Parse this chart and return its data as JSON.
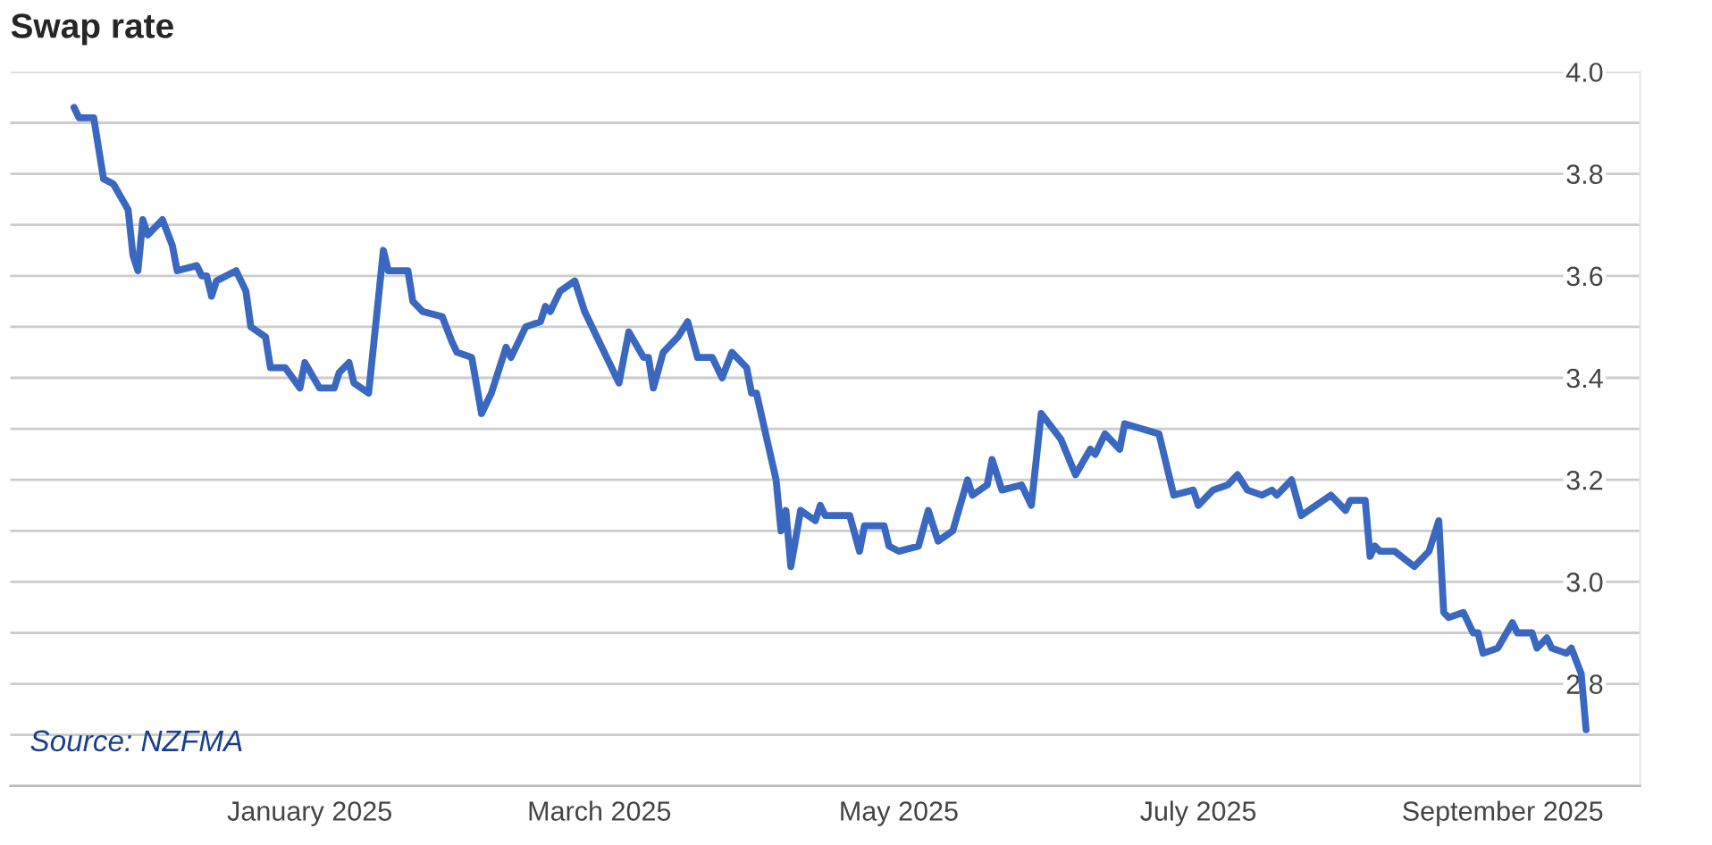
{
  "chart_data": {
    "type": "line",
    "title": "Swap rate",
    "annotations": [
      "Source: NZFMA"
    ],
    "x": [
      "2024-11-14",
      "2024-11-15",
      "2024-11-18",
      "2024-11-20",
      "2024-11-22",
      "2024-11-25",
      "2024-11-26",
      "2024-11-27",
      "2024-11-28",
      "2024-11-29",
      "2024-12-02",
      "2024-12-04",
      "2024-12-05",
      "2024-12-09",
      "2024-12-10",
      "2024-12-11",
      "2024-12-12",
      "2024-12-13",
      "2024-12-17",
      "2024-12-19",
      "2024-12-20",
      "2024-12-23",
      "2024-12-24",
      "2024-12-27",
      "2024-12-30",
      "2024-12-31",
      "2025-01-03",
      "2025-01-06",
      "2025-01-07",
      "2025-01-09",
      "2025-01-10",
      "2025-01-13",
      "2025-01-16",
      "2025-01-17",
      "2025-01-21",
      "2025-01-22",
      "2025-01-24",
      "2025-01-28",
      "2025-01-30",
      "2025-01-31",
      "2025-02-03",
      "2025-02-05",
      "2025-02-07",
      "2025-02-10",
      "2025-02-11",
      "2025-02-14",
      "2025-02-17",
      "2025-02-18",
      "2025-02-19",
      "2025-02-21",
      "2025-02-24",
      "2025-02-26",
      "2025-03-03",
      "2025-03-05",
      "2025-03-07",
      "2025-03-10",
      "2025-03-11",
      "2025-03-12",
      "2025-03-14",
      "2025-03-17",
      "2025-03-19",
      "2025-03-21",
      "2025-03-24",
      "2025-03-26",
      "2025-03-28",
      "2025-03-31",
      "2025-04-01",
      "2025-04-02",
      "2025-04-06",
      "2025-04-07",
      "2025-04-08",
      "2025-04-09",
      "2025-04-11",
      "2025-04-14",
      "2025-04-15",
      "2025-04-16",
      "2025-04-21",
      "2025-04-23",
      "2025-04-24",
      "2025-04-28",
      "2025-04-29",
      "2025-05-01",
      "2025-05-05",
      "2025-05-07",
      "2025-05-09",
      "2025-05-12",
      "2025-05-15",
      "2025-05-16",
      "2025-05-19",
      "2025-05-20",
      "2025-05-22",
      "2025-05-26",
      "2025-05-28",
      "2025-05-30",
      "2025-06-03",
      "2025-06-06",
      "2025-06-09",
      "2025-06-10",
      "2025-06-12",
      "2025-06-15",
      "2025-06-16",
      "2025-06-23",
      "2025-06-26",
      "2025-06-30",
      "2025-07-01",
      "2025-07-04",
      "2025-07-07",
      "2025-07-09",
      "2025-07-11",
      "2025-07-14",
      "2025-07-16",
      "2025-07-17",
      "2025-07-20",
      "2025-07-22",
      "2025-07-28",
      "2025-07-29",
      "2025-07-31",
      "2025-08-01",
      "2025-08-04",
      "2025-08-05",
      "2025-08-06",
      "2025-08-07",
      "2025-08-10",
      "2025-08-14",
      "2025-08-17",
      "2025-08-19",
      "2025-08-20",
      "2025-08-21",
      "2025-08-24",
      "2025-08-26",
      "2025-08-27",
      "2025-08-28",
      "2025-08-31",
      "2025-09-03",
      "2025-09-04",
      "2025-09-07",
      "2025-09-08",
      "2025-09-10",
      "2025-09-11",
      "2025-09-14",
      "2025-09-15",
      "2025-09-17",
      "2025-09-18"
    ],
    "series": [
      {
        "color": "#3a68c0",
        "values": [
          3.93,
          3.91,
          3.91,
          3.79,
          3.78,
          3.73,
          3.64,
          3.61,
          3.71,
          3.68,
          3.71,
          3.66,
          3.61,
          3.62,
          3.6,
          3.6,
          3.56,
          3.59,
          3.61,
          3.57,
          3.5,
          3.48,
          3.42,
          3.42,
          3.38,
          3.43,
          3.38,
          3.38,
          3.41,
          3.43,
          3.39,
          3.37,
          3.65,
          3.61,
          3.61,
          3.55,
          3.53,
          3.52,
          3.47,
          3.45,
          3.44,
          3.33,
          3.37,
          3.46,
          3.44,
          3.5,
          3.51,
          3.54,
          3.53,
          3.57,
          3.59,
          3.53,
          3.43,
          3.39,
          3.49,
          3.44,
          3.44,
          3.38,
          3.45,
          3.48,
          3.51,
          3.44,
          3.44,
          3.4,
          3.45,
          3.42,
          3.37,
          3.37,
          3.2,
          3.1,
          3.14,
          3.03,
          3.14,
          3.12,
          3.15,
          3.13,
          3.13,
          3.06,
          3.11,
          3.11,
          3.07,
          3.06,
          3.07,
          3.14,
          3.08,
          3.1,
          3.2,
          3.17,
          3.19,
          3.24,
          3.18,
          3.19,
          3.15,
          3.33,
          3.28,
          3.21,
          3.26,
          3.25,
          3.29,
          3.26,
          3.31,
          3.29,
          3.17,
          3.18,
          3.15,
          3.18,
          3.19,
          3.21,
          3.18,
          3.17,
          3.18,
          3.17,
          3.2,
          3.13,
          3.17,
          3.16,
          3.14,
          3.16,
          3.16,
          3.05,
          3.07,
          3.06,
          3.06,
          3.03,
          3.06,
          3.12,
          2.94,
          2.93,
          2.94,
          2.9,
          2.9,
          2.86,
          2.87,
          2.92,
          2.9,
          2.9,
          2.87,
          2.89,
          2.87,
          2.86,
          2.87,
          2.82,
          2.71
        ]
      }
    ],
    "xlim": [
      "2024-11-01",
      "2025-09-29"
    ],
    "xticks": [
      {
        "value": "2025-01-01",
        "label": "January 2025"
      },
      {
        "value": "2025-03-01",
        "label": "March 2025"
      },
      {
        "value": "2025-05-01",
        "label": "May 2025"
      },
      {
        "value": "2025-07-01",
        "label": "July 2025"
      },
      {
        "value": "2025-09-01",
        "label": "September 2025"
      }
    ],
    "ylim": [
      2.6,
      4.0
    ],
    "yticks": [
      {
        "value": 2.6,
        "label": null
      },
      {
        "value": 2.7,
        "label": null
      },
      {
        "value": 2.8,
        "label": "2.8"
      },
      {
        "value": 2.9,
        "label": null
      },
      {
        "value": 3.0,
        "label": "3.0"
      },
      {
        "value": 3.1,
        "label": null
      },
      {
        "value": 3.2,
        "label": "3.2"
      },
      {
        "value": 3.3,
        "label": null
      },
      {
        "value": 3.4,
        "label": "3.4"
      },
      {
        "value": 3.5,
        "label": null
      },
      {
        "value": 3.6,
        "label": "3.6"
      },
      {
        "value": 3.7,
        "label": null
      },
      {
        "value": 3.8,
        "label": "3.8"
      },
      {
        "value": 3.9,
        "label": null
      },
      {
        "value": 4.0,
        "label": "4.0"
      }
    ],
    "grid": "y",
    "legend": false,
    "marker": "none",
    "line_style": "solid"
  }
}
